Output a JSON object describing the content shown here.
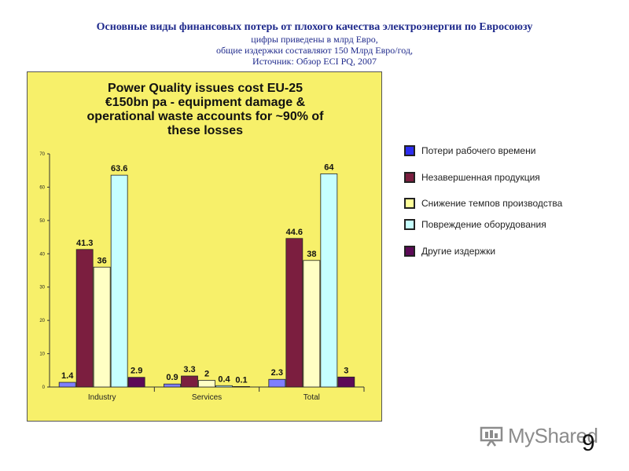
{
  "header": {
    "title": "Основные виды финансовых потерь от плохого качества электроэнергии по Евросоюзу",
    "sub1": "цифры приведены в млрд Евро,",
    "sub2": "общие издержки составляют 150 Млрд Евро/год,",
    "sub3": "Источник: Обзор ECI PQ, 2007"
  },
  "chart_data": {
    "type": "bar",
    "title_lines": [
      "Power Quality issues cost EU-25",
      "€150bn pa - equipment damage &",
      "operational waste accounts for ~90% of",
      "these losses"
    ],
    "categories": [
      "Industry",
      "Services",
      "Total"
    ],
    "ylim": [
      0,
      70
    ],
    "yticks": [
      0,
      10,
      20,
      30,
      40,
      50,
      60,
      70
    ],
    "grid": false,
    "legend_position": "right",
    "series": [
      {
        "name": "Потери рабочего времени",
        "values": [
          1.4,
          0.9,
          2.3
        ],
        "labels": [
          "1.4",
          "0.9",
          "2.3"
        ],
        "color": "#7f7fff"
      },
      {
        "name": "Незавершенная продукция",
        "values": [
          41.3,
          3.3,
          44.6
        ],
        "labels": [
          "41.3",
          "3.3",
          "44.6"
        ],
        "color": "#7b1e3f"
      },
      {
        "name": "Снижение темпов производства",
        "values": [
          36,
          2,
          38
        ],
        "labels": [
          "36",
          "2",
          "38"
        ],
        "color": "#ffffc4"
      },
      {
        "name": "Повреждение оборудования",
        "values": [
          63.6,
          0.4,
          64
        ],
        "labels": [
          "63.6",
          "0.4",
          "64"
        ],
        "color": "#c6ffff"
      },
      {
        "name": "Другие издержки",
        "values": [
          2.9,
          0.1,
          3
        ],
        "labels": [
          "2.9",
          "0.1",
          "3"
        ],
        "color": "#5c0a57"
      }
    ]
  },
  "legend_colors": {
    "Потери рабочего времени": "#2d2df0",
    "Незавершенная продукция": "#7b1e3f",
    "Снижение темпов производства": "#ffff99",
    "Повреждение оборудования": "#c6ffff",
    "Другие издержки": "#5c0a57"
  },
  "logo": {
    "text": "MyShared",
    "icon": "presentation-board-icon"
  },
  "page_number": "9"
}
